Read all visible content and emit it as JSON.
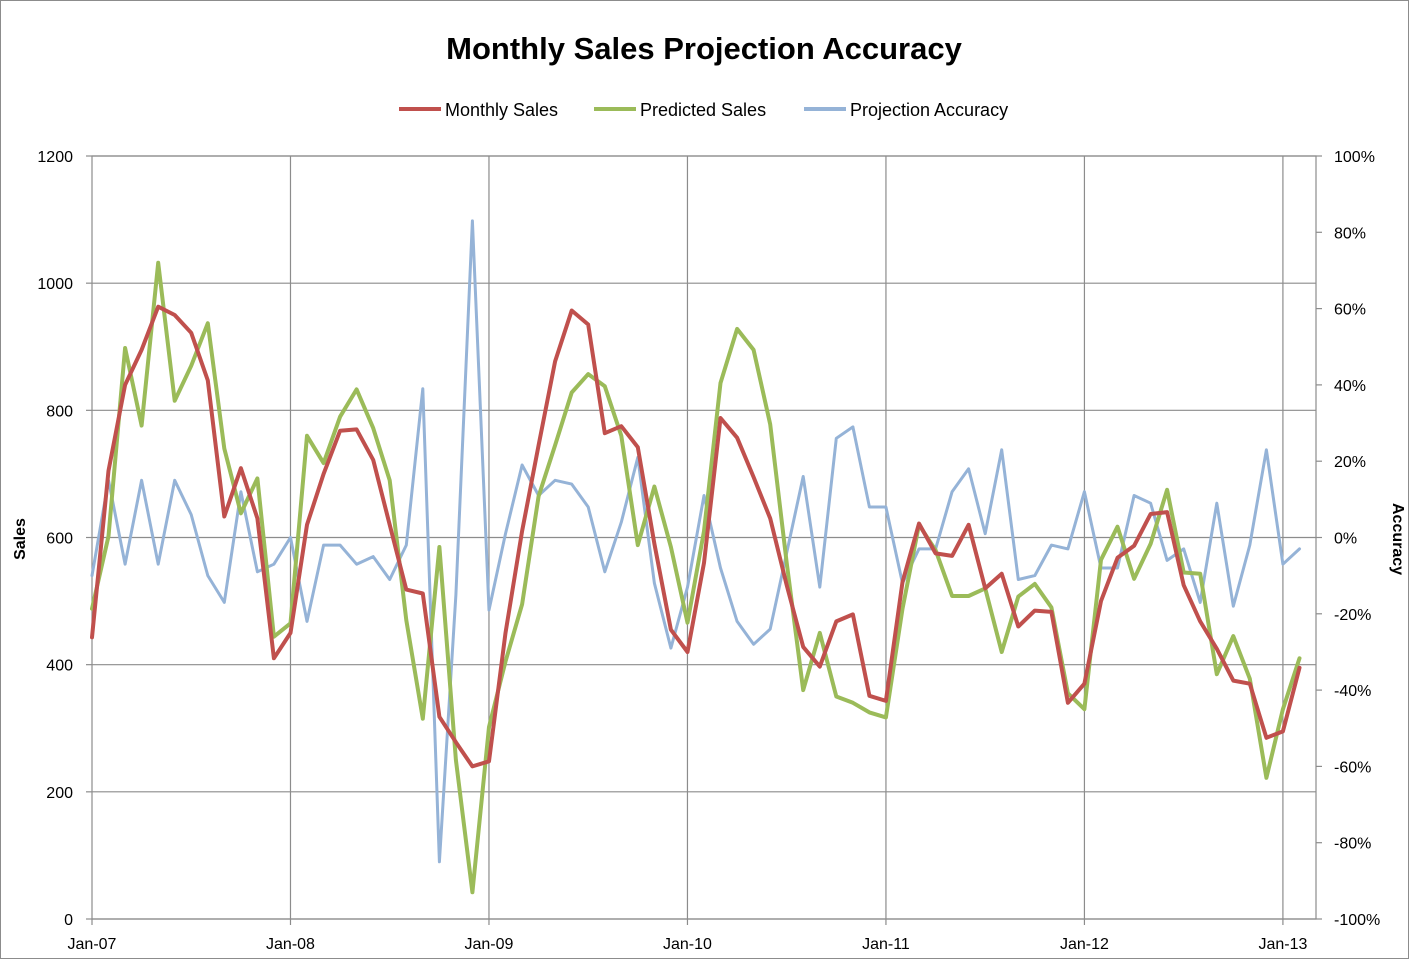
{
  "chart_data": {
    "type": "line",
    "title": "Monthly Sales Projection Accuracy",
    "xlabel": "",
    "ylabel": "Sales",
    "y2label": "Accuracy",
    "ylim": [
      0,
      1200
    ],
    "y2lim": [
      -100,
      100
    ],
    "yticks": [
      "0",
      "200",
      "400",
      "600",
      "800",
      "1000",
      "1200"
    ],
    "y2ticks": [
      "-100%",
      "-80%",
      "-60%",
      "-40%",
      "-20%",
      "0%",
      "20%",
      "40%",
      "60%",
      "80%",
      "100%"
    ],
    "xticks": [
      "Jan-07",
      "Jan-08",
      "Jan-09",
      "Jan-10",
      "Jan-11",
      "Jan-12",
      "Jan-13"
    ],
    "xlim_months": [
      0,
      74
    ],
    "x_months": [
      0,
      1,
      2,
      3,
      4,
      5,
      6,
      7,
      8,
      9,
      10,
      11,
      12,
      13,
      14,
      15,
      16,
      17,
      18,
      19,
      20,
      21,
      22,
      23,
      24,
      25,
      26,
      27,
      28,
      29,
      30,
      31,
      32,
      33,
      34,
      35,
      36,
      37,
      38,
      39,
      40,
      41,
      42,
      43,
      44,
      45,
      46,
      47,
      48,
      49,
      50,
      51,
      52,
      53,
      54,
      55,
      56,
      57,
      58,
      59,
      60,
      61,
      62,
      63,
      64,
      65,
      66,
      67,
      68,
      69,
      70,
      71,
      72,
      73
    ],
    "legend_position": "top-center",
    "grid": true,
    "series": [
      {
        "name": "Monthly Sales",
        "axis": "left",
        "color": "#c0504d",
        "values": [
          443,
          705,
          840,
          895,
          963,
          950,
          922,
          847,
          633,
          709,
          630,
          410,
          450,
          620,
          700,
          768,
          770,
          722,
          620,
          518,
          512,
          318,
          278,
          240,
          248,
          450,
          610,
          745,
          877,
          957,
          935,
          764,
          775,
          742,
          590,
          455,
          420,
          560,
          788,
          757,
          695,
          630,
          525,
          428,
          397,
          468,
          479,
          351,
          343,
          530,
          622,
          575,
          571,
          620,
          520,
          543,
          460,
          485,
          483,
          340,
          370,
          500,
          568,
          587,
          637,
          640,
          525,
          468,
          425,
          375,
          370,
          285,
          295,
          395
        ]
      },
      {
        "name": "Predicted Sales",
        "axis": "left",
        "color": "#9bbb59",
        "values": [
          488,
          602,
          898,
          776,
          1032,
          815,
          870,
          937,
          740,
          638,
          693,
          444,
          465,
          760,
          717,
          790,
          833,
          772,
          690,
          470,
          315,
          585,
          250,
          42,
          302,
          405,
          495,
          665,
          745,
          828,
          857,
          838,
          760,
          588,
          680,
          585,
          466,
          610,
          843,
          928,
          895,
          778,
          560,
          360,
          450,
          350,
          340,
          325,
          317,
          488,
          620,
          580,
          508,
          508,
          520,
          420,
          507,
          527,
          490,
          355,
          330,
          565,
          617,
          535,
          590,
          675,
          545,
          543,
          385,
          445,
          378,
          222,
          330,
          410
        ]
      },
      {
        "name": "Projection Accuracy",
        "axis": "right",
        "color": "#95b3d7",
        "values": [
          -10,
          15,
          -7,
          15,
          -7,
          15,
          6,
          -10,
          -17,
          12,
          -9,
          -7,
          0,
          -22,
          -2,
          -2,
          -7,
          -5,
          -11,
          -2,
          39,
          -85,
          -15,
          83,
          -19,
          1,
          19,
          11,
          15,
          14,
          8,
          -9,
          4,
          21,
          -12,
          -29,
          -13,
          11,
          -8,
          -22,
          -28,
          -24,
          -4,
          16,
          -13,
          26,
          29,
          8,
          8,
          -12,
          -3,
          -3,
          12,
          18,
          1,
          23,
          -11,
          -10,
          -2,
          -3,
          12,
          -8,
          -8,
          11,
          9,
          -6,
          -3,
          -17,
          9,
          -18,
          -2,
          23,
          -7,
          -3
        ]
      }
    ]
  }
}
